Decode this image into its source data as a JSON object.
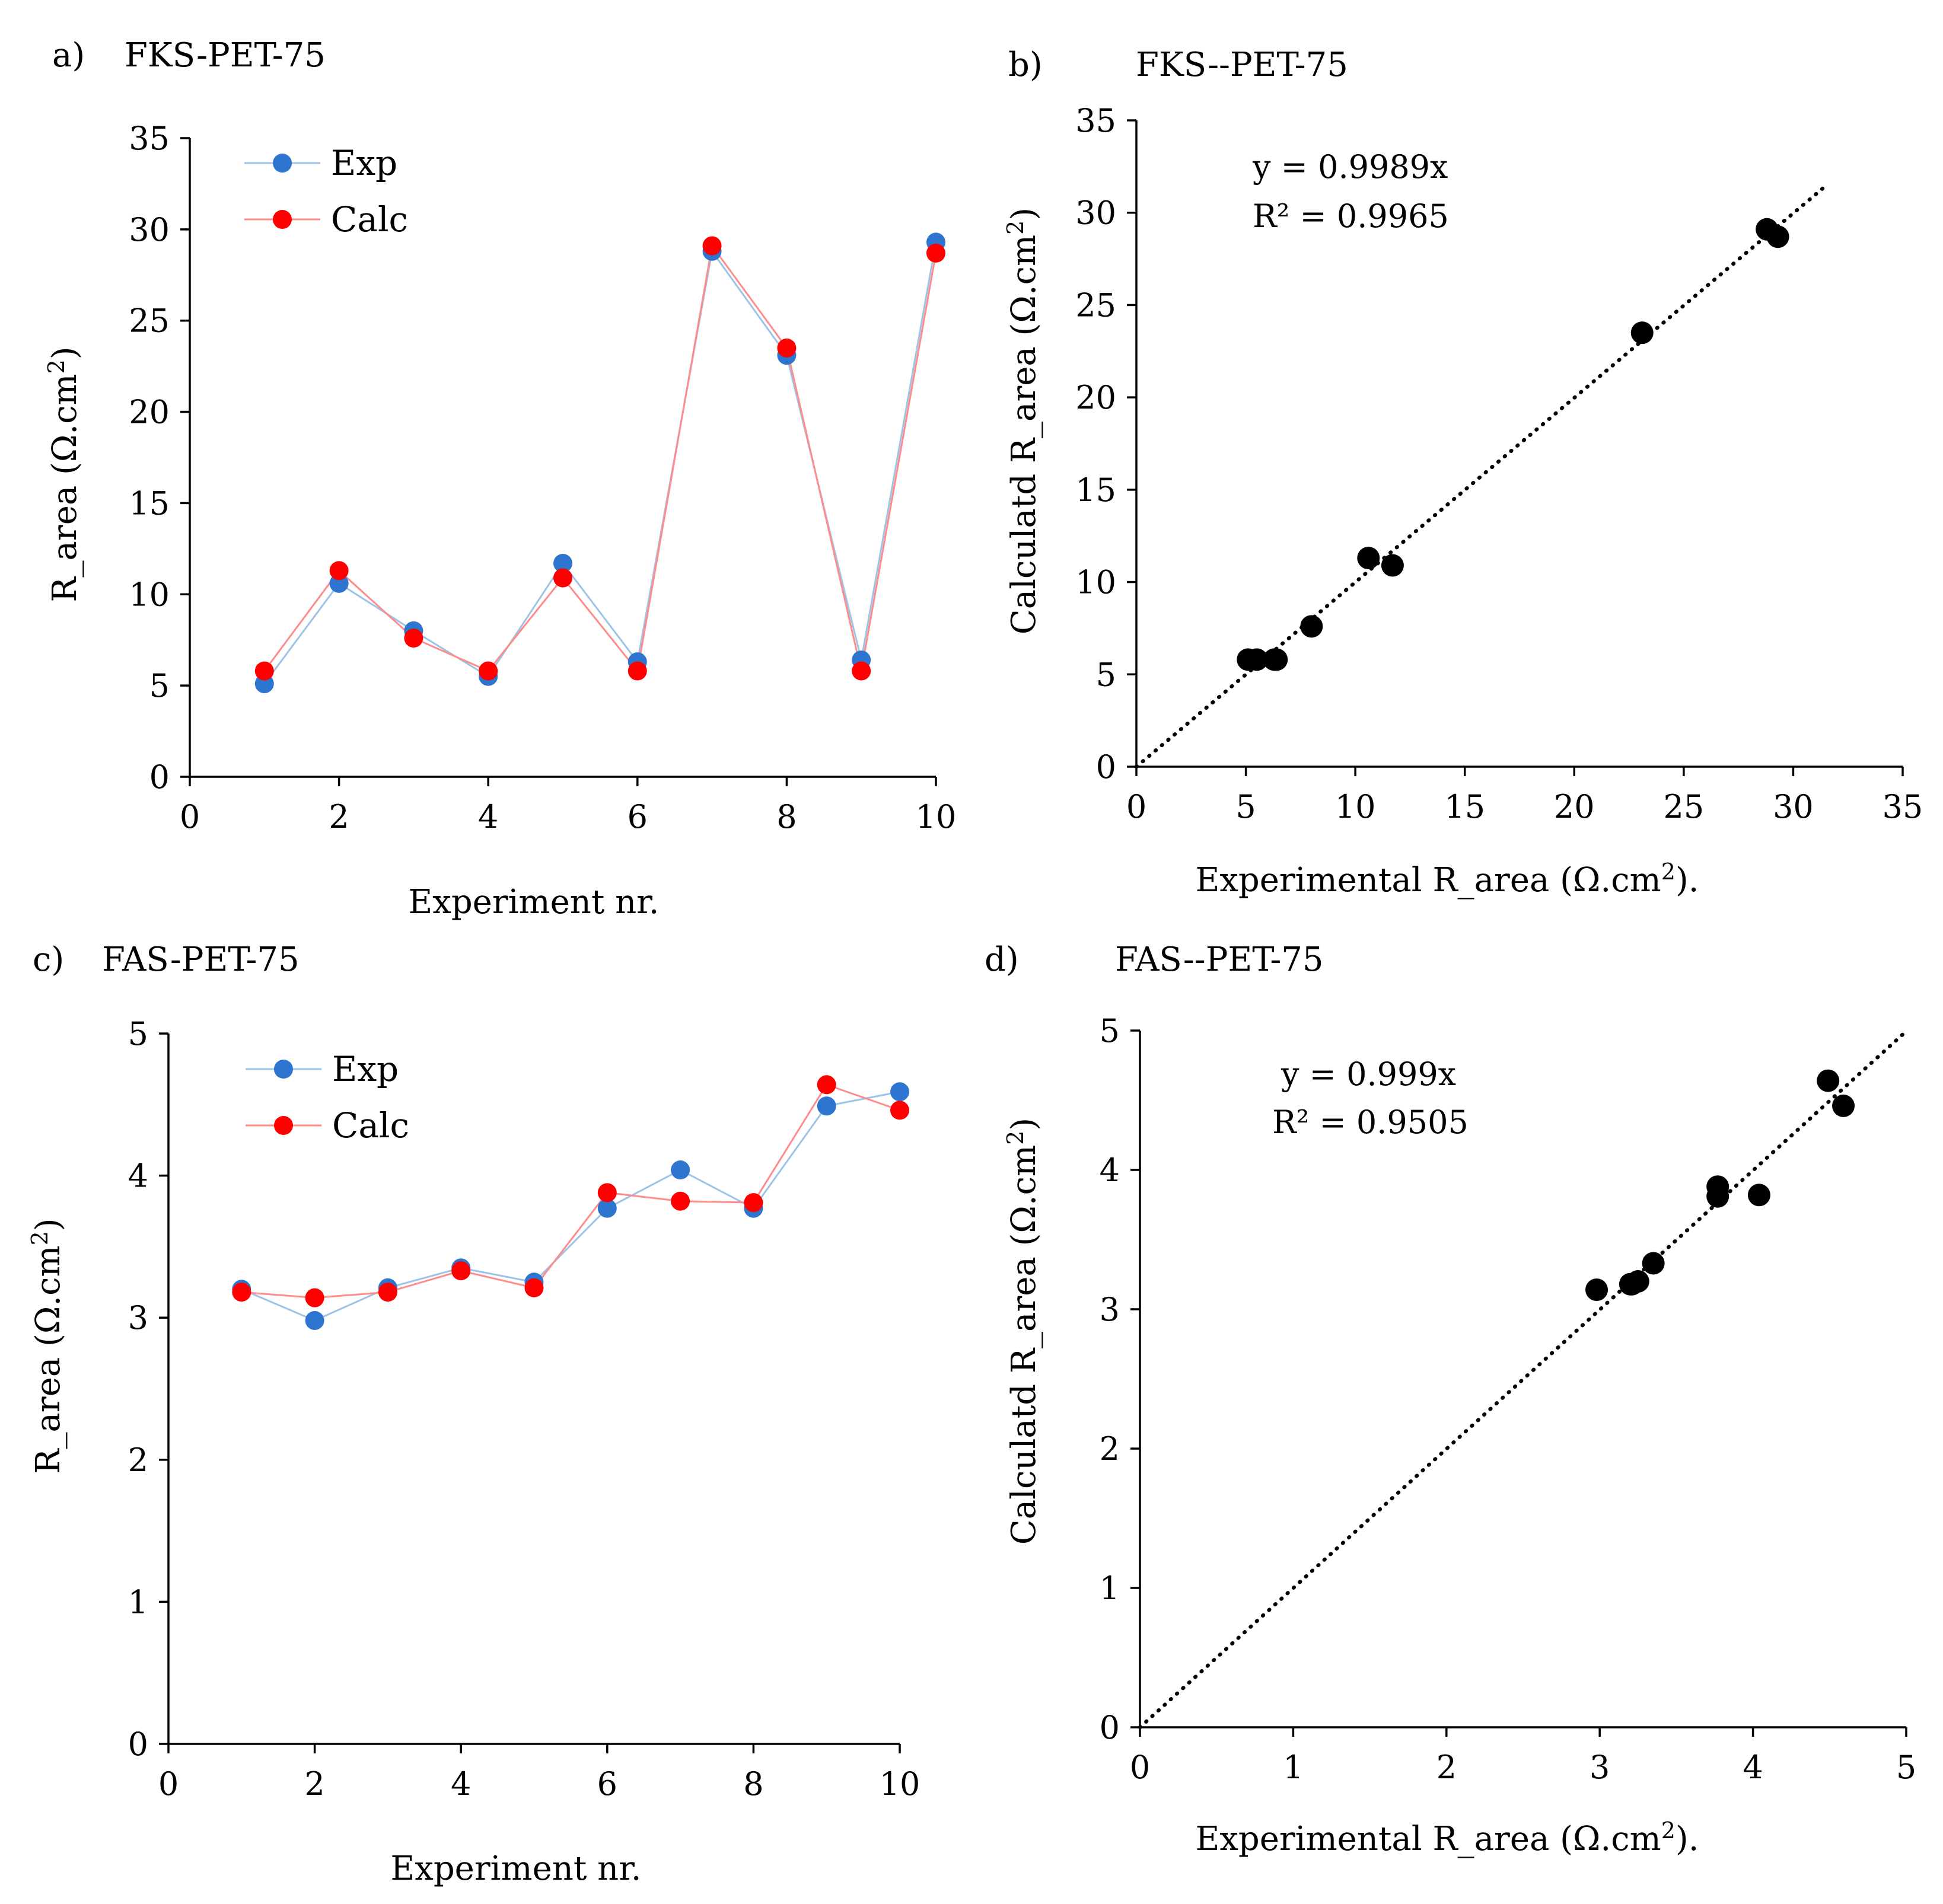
{
  "chart_data": [
    {
      "id": "a",
      "type": "line",
      "panel_label": "a)",
      "title": "FKS-PET-75",
      "xlabel": "Experiment nr.",
      "ylabel": "R_area (Ω.cm",
      "ylabel_sup": "2",
      "ylabel_end": ")",
      "xlim": [
        0,
        10
      ],
      "ylim": [
        0,
        35
      ],
      "xticks": [
        0,
        2,
        4,
        6,
        8,
        10
      ],
      "yticks": [
        0,
        5,
        10,
        15,
        20,
        25,
        30,
        35
      ],
      "grid": false,
      "legend_position": "top-left",
      "x": [
        1,
        2,
        3,
        4,
        5,
        6,
        7,
        8,
        9,
        10
      ],
      "series": [
        {
          "name": "Exp",
          "color": "#2E75CF",
          "line_color": "#9DC3E6",
          "values": [
            5.1,
            10.6,
            8.0,
            5.5,
            11.7,
            6.3,
            28.8,
            23.1,
            6.4,
            29.3
          ]
        },
        {
          "name": "Calc",
          "color": "#FF0000",
          "line_color": "#FF8C8C",
          "values": [
            5.8,
            11.3,
            7.6,
            5.8,
            10.9,
            5.8,
            29.1,
            23.5,
            5.8,
            28.7
          ]
        }
      ]
    },
    {
      "id": "b",
      "type": "scatter",
      "panel_label": "b)",
      "title": "FKS--PET-75",
      "xlabel": "Experimental R_area (Ω.cm",
      "xlabel_sup": "2",
      "xlabel_end": ").",
      "ylabel": "Calculatd R_area (Ω.cm",
      "ylabel_sup": "2",
      "ylabel_end": ")",
      "xlim": [
        0,
        35
      ],
      "ylim": [
        0,
        35
      ],
      "xticks": [
        0,
        5,
        10,
        15,
        20,
        25,
        30,
        35
      ],
      "yticks": [
        0,
        5,
        10,
        15,
        20,
        25,
        30,
        35
      ],
      "grid": false,
      "trendline": {
        "slope": 0.9989,
        "x_end": 31.5,
        "equation": "y = 0.9989x",
        "r2": "R² = 0.9965"
      },
      "points": [
        [
          5.1,
          5.8
        ],
        [
          5.5,
          5.8
        ],
        [
          6.3,
          5.8
        ],
        [
          8.0,
          7.6
        ],
        [
          10.6,
          11.3
        ],
        [
          11.7,
          10.9
        ],
        [
          23.1,
          23.5
        ],
        [
          28.8,
          29.1
        ],
        [
          29.3,
          28.7
        ],
        [
          6.4,
          5.8
        ]
      ],
      "marker_color": "#000000"
    },
    {
      "id": "c",
      "type": "line",
      "panel_label": "c)",
      "title": "FAS-PET-75",
      "xlabel": "Experiment nr.",
      "ylabel": "R_area (Ω.cm",
      "ylabel_sup": "2",
      "ylabel_end": ")",
      "xlim": [
        0,
        10
      ],
      "ylim": [
        0,
        5
      ],
      "xticks": [
        0,
        2,
        4,
        6,
        8,
        10
      ],
      "yticks": [
        0,
        1,
        2,
        3,
        4,
        5
      ],
      "grid": false,
      "legend_position": "top-left",
      "x": [
        1,
        2,
        3,
        4,
        5,
        6,
        7,
        8,
        9,
        10
      ],
      "series": [
        {
          "name": "Exp",
          "color": "#2E75CF",
          "line_color": "#9DC3E6",
          "values": [
            3.2,
            2.98,
            3.21,
            3.35,
            3.25,
            3.77,
            4.04,
            3.77,
            4.49,
            4.59
          ]
        },
        {
          "name": "Calc",
          "color": "#FF0000",
          "line_color": "#FF8C8C",
          "values": [
            3.18,
            3.14,
            3.18,
            3.33,
            3.21,
            3.88,
            3.82,
            3.81,
            4.64,
            4.46
          ]
        }
      ]
    },
    {
      "id": "d",
      "type": "scatter",
      "panel_label": "d)",
      "title": "FAS--PET-75",
      "xlabel": "Experimental R_area (Ω.cm",
      "xlabel_sup": "2",
      "xlabel_end": ").",
      "ylabel": "Calculatd R_area (Ω.cm",
      "ylabel_sup": "2",
      "ylabel_end": ")",
      "xlim": [
        0,
        5
      ],
      "ylim": [
        0,
        5
      ],
      "xticks": [
        0,
        1,
        2,
        3,
        4,
        5
      ],
      "yticks": [
        0,
        1,
        2,
        3,
        4,
        5
      ],
      "grid": false,
      "trendline": {
        "slope": 0.999,
        "x_end": 5.0,
        "equation": "y = 0.999x",
        "r2": "R² = 0.9505"
      },
      "points": [
        [
          2.98,
          3.14
        ],
        [
          3.2,
          3.18
        ],
        [
          3.25,
          3.2
        ],
        [
          3.35,
          3.33
        ],
        [
          3.77,
          3.88
        ],
        [
          3.77,
          3.81
        ],
        [
          4.04,
          3.82
        ],
        [
          4.49,
          4.64
        ],
        [
          4.59,
          4.46
        ],
        [
          3.21,
          3.18
        ]
      ],
      "marker_color": "#000000"
    }
  ]
}
